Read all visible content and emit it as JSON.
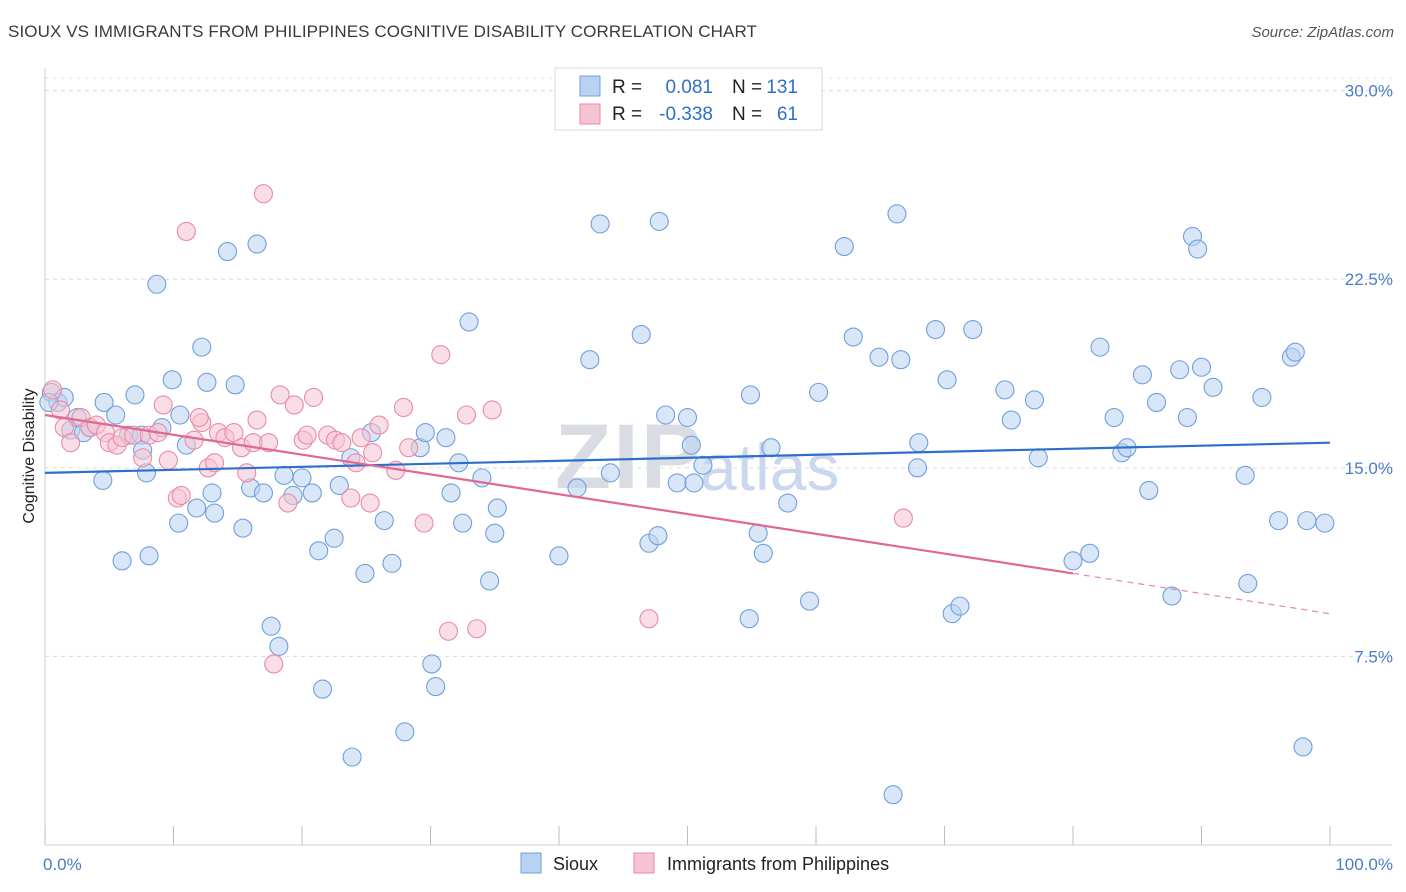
{
  "title": "SIOUX VS IMMIGRANTS FROM PHILIPPINES COGNITIVE DISABILITY CORRELATION CHART",
  "source": "Source: ZipAtlas.com",
  "watermark": {
    "zip": "ZIP",
    "atlas": "atlas"
  },
  "colors": {
    "sioux": "#6fa0dc",
    "sioux_fill": "#b9d2f2",
    "phil": "#e98aa8",
    "phil_fill": "#f6c3d2",
    "blue_line": "#2f6fcc",
    "pink_line": "#e06891"
  },
  "chart_data": {
    "type": "scatter",
    "xlabel": "",
    "ylabel": "Cognitive Disability",
    "xlim": [
      0,
      100
    ],
    "ylim": [
      0,
      30.9
    ],
    "x_tick_labels": [
      {
        "v": 0,
        "label": "0.0%"
      },
      {
        "v": 100,
        "label": "100.0%"
      }
    ],
    "y_ticks": [
      {
        "v": 7.5,
        "label": "7.5%"
      },
      {
        "v": 15.0,
        "label": "15.0%"
      },
      {
        "v": 22.5,
        "label": "22.5%"
      },
      {
        "v": 30.0,
        "label": "30.0%"
      }
    ],
    "legend": {
      "rows": [
        {
          "r_label": "R =",
          "r_value": "0.081",
          "n_label": "N =",
          "n_value": "131"
        },
        {
          "r_label": "R =",
          "r_value": "-0.338",
          "n_label": "N =",
          "n_value": "61"
        }
      ]
    },
    "series": [
      {
        "name": "Sioux",
        "trend": {
          "x0": 0,
          "y0": 14.8,
          "x1": 100,
          "y1": 16.0
        },
        "points": [
          [
            0.5,
            18.0
          ],
          [
            1.0,
            17.6
          ],
          [
            1.5,
            17.8
          ],
          [
            2.0,
            16.5
          ],
          [
            2.5,
            17.0
          ],
          [
            3.0,
            16.4
          ],
          [
            3.5,
            16.6
          ],
          [
            4.5,
            14.5
          ],
          [
            4.6,
            17.6
          ],
          [
            5.5,
            17.1
          ],
          [
            6.0,
            11.3
          ],
          [
            6.5,
            16.3
          ],
          [
            7.0,
            17.9
          ],
          [
            7.5,
            16.3
          ],
          [
            7.6,
            15.7
          ],
          [
            7.9,
            14.8
          ],
          [
            8.1,
            11.5
          ],
          [
            8.7,
            22.3
          ],
          [
            9.1,
            16.6
          ],
          [
            9.9,
            18.5
          ],
          [
            10.4,
            12.8
          ],
          [
            10.5,
            17.1
          ],
          [
            11.0,
            15.9
          ],
          [
            11.8,
            13.4
          ],
          [
            12.2,
            19.8
          ],
          [
            12.6,
            18.4
          ],
          [
            13.0,
            14.0
          ],
          [
            13.2,
            13.2
          ],
          [
            14.2,
            23.6
          ],
          [
            14.8,
            18.3
          ],
          [
            15.4,
            12.6
          ],
          [
            16.0,
            14.2
          ],
          [
            16.5,
            23.9
          ],
          [
            17.0,
            14.0
          ],
          [
            17.6,
            8.7
          ],
          [
            18.2,
            7.9
          ],
          [
            18.6,
            14.7
          ],
          [
            19.3,
            13.9
          ],
          [
            20.0,
            14.6
          ],
          [
            20.8,
            14.0
          ],
          [
            21.3,
            11.7
          ],
          [
            21.6,
            6.2
          ],
          [
            22.5,
            12.2
          ],
          [
            22.9,
            14.3
          ],
          [
            23.8,
            15.4
          ],
          [
            23.9,
            3.5
          ],
          [
            24.9,
            10.8
          ],
          [
            25.4,
            16.4
          ],
          [
            26.4,
            12.9
          ],
          [
            27.0,
            11.2
          ],
          [
            28.0,
            4.5
          ],
          [
            29.2,
            15.8
          ],
          [
            29.6,
            16.4
          ],
          [
            30.1,
            7.2
          ],
          [
            30.4,
            6.3
          ],
          [
            31.2,
            16.2
          ],
          [
            31.6,
            14.0
          ],
          [
            32.2,
            15.2
          ],
          [
            32.5,
            12.8
          ],
          [
            33.0,
            20.8
          ],
          [
            34.0,
            14.6
          ],
          [
            34.6,
            10.5
          ],
          [
            35.0,
            12.4
          ],
          [
            35.2,
            13.4
          ],
          [
            40.0,
            11.5
          ],
          [
            41.4,
            14.2
          ],
          [
            42.4,
            19.3
          ],
          [
            43.2,
            24.7
          ],
          [
            44.0,
            14.8
          ],
          [
            46.4,
            20.3
          ],
          [
            47.0,
            12.0
          ],
          [
            47.7,
            12.3
          ],
          [
            47.8,
            24.8
          ],
          [
            48.3,
            17.1
          ],
          [
            49.2,
            14.4
          ],
          [
            50.0,
            17.0
          ],
          [
            50.3,
            15.9
          ],
          [
            50.5,
            14.4
          ],
          [
            51.2,
            15.1
          ],
          [
            54.8,
            9.0
          ],
          [
            54.9,
            17.9
          ],
          [
            55.5,
            12.4
          ],
          [
            55.9,
            11.6
          ],
          [
            56.5,
            15.8
          ],
          [
            57.8,
            13.6
          ],
          [
            59.5,
            9.7
          ],
          [
            60.2,
            18.0
          ],
          [
            62.2,
            23.8
          ],
          [
            62.9,
            20.2
          ],
          [
            64.9,
            19.4
          ],
          [
            66.3,
            25.1
          ],
          [
            66.6,
            19.3
          ],
          [
            67.9,
            15.0
          ],
          [
            68.0,
            16.0
          ],
          [
            69.3,
            20.5
          ],
          [
            70.2,
            18.5
          ],
          [
            70.6,
            9.2
          ],
          [
            71.2,
            9.5
          ],
          [
            72.2,
            20.5
          ],
          [
            74.7,
            18.1
          ],
          [
            75.2,
            16.9
          ],
          [
            77.0,
            17.7
          ],
          [
            77.3,
            15.4
          ],
          [
            80.0,
            11.3
          ],
          [
            81.3,
            11.6
          ],
          [
            82.1,
            19.8
          ],
          [
            83.2,
            17.0
          ],
          [
            83.8,
            15.6
          ],
          [
            84.2,
            15.8
          ],
          [
            85.4,
            18.7
          ],
          [
            85.9,
            14.1
          ],
          [
            86.5,
            17.6
          ],
          [
            87.7,
            9.9
          ],
          [
            88.3,
            18.9
          ],
          [
            88.9,
            17.0
          ],
          [
            89.3,
            24.2
          ],
          [
            89.7,
            23.7
          ],
          [
            90.0,
            19.0
          ],
          [
            90.9,
            18.2
          ],
          [
            93.4,
            14.7
          ],
          [
            93.6,
            10.4
          ],
          [
            94.7,
            17.8
          ],
          [
            96.0,
            12.9
          ],
          [
            97.0,
            19.4
          ],
          [
            97.3,
            19.6
          ],
          [
            97.9,
            3.9
          ],
          [
            98.2,
            12.9
          ],
          [
            99.6,
            12.8
          ],
          [
            0.3,
            17.6
          ],
          [
            66.0,
            2.0
          ]
        ]
      },
      {
        "name": "Immigrants from Philippines",
        "trend": {
          "x0": 0,
          "y0": 17.1,
          "x1": 80,
          "y1": 10.8,
          "dash_to_x": 100,
          "dash_to_y": 9.2
        },
        "points": [
          [
            0.6,
            18.1
          ],
          [
            1.2,
            17.3
          ],
          [
            1.5,
            16.6
          ],
          [
            2.0,
            16.0
          ],
          [
            2.8,
            17.0
          ],
          [
            3.5,
            16.6
          ],
          [
            4.0,
            16.7
          ],
          [
            4.7,
            16.4
          ],
          [
            5.0,
            16.0
          ],
          [
            5.6,
            15.9
          ],
          [
            6.0,
            16.2
          ],
          [
            6.9,
            16.3
          ],
          [
            7.6,
            15.4
          ],
          [
            8.1,
            16.3
          ],
          [
            8.8,
            16.4
          ],
          [
            9.2,
            17.5
          ],
          [
            9.6,
            15.3
          ],
          [
            10.3,
            13.8
          ],
          [
            10.6,
            13.9
          ],
          [
            11.0,
            24.4
          ],
          [
            11.6,
            16.1
          ],
          [
            12.2,
            16.8
          ],
          [
            12.7,
            15.0
          ],
          [
            13.2,
            15.2
          ],
          [
            13.5,
            16.4
          ],
          [
            14.0,
            16.2
          ],
          [
            14.7,
            16.4
          ],
          [
            15.3,
            15.8
          ],
          [
            15.7,
            14.8
          ],
          [
            16.2,
            16.0
          ],
          [
            16.5,
            16.9
          ],
          [
            17.0,
            25.9
          ],
          [
            17.4,
            16.0
          ],
          [
            17.8,
            7.2
          ],
          [
            18.3,
            17.9
          ],
          [
            18.9,
            13.6
          ],
          [
            19.4,
            17.5
          ],
          [
            20.1,
            16.1
          ],
          [
            20.4,
            16.3
          ],
          [
            20.9,
            17.8
          ],
          [
            22.0,
            16.3
          ],
          [
            22.6,
            16.1
          ],
          [
            23.1,
            16.0
          ],
          [
            23.8,
            13.8
          ],
          [
            24.2,
            15.2
          ],
          [
            25.5,
            15.6
          ],
          [
            26.0,
            16.7
          ],
          [
            27.3,
            14.9
          ],
          [
            27.9,
            17.4
          ],
          [
            28.3,
            15.8
          ],
          [
            29.5,
            12.8
          ],
          [
            30.8,
            19.5
          ],
          [
            31.4,
            8.5
          ],
          [
            32.8,
            17.1
          ],
          [
            33.6,
            8.6
          ],
          [
            34.8,
            17.3
          ],
          [
            47.0,
            9.0
          ],
          [
            66.8,
            13.0
          ],
          [
            25.3,
            13.6
          ],
          [
            12.0,
            17.0
          ],
          [
            24.6,
            16.2
          ]
        ]
      }
    ]
  },
  "bottom_legend": [
    {
      "label": "Sioux"
    },
    {
      "label": "Immigrants from Philippines"
    }
  ]
}
